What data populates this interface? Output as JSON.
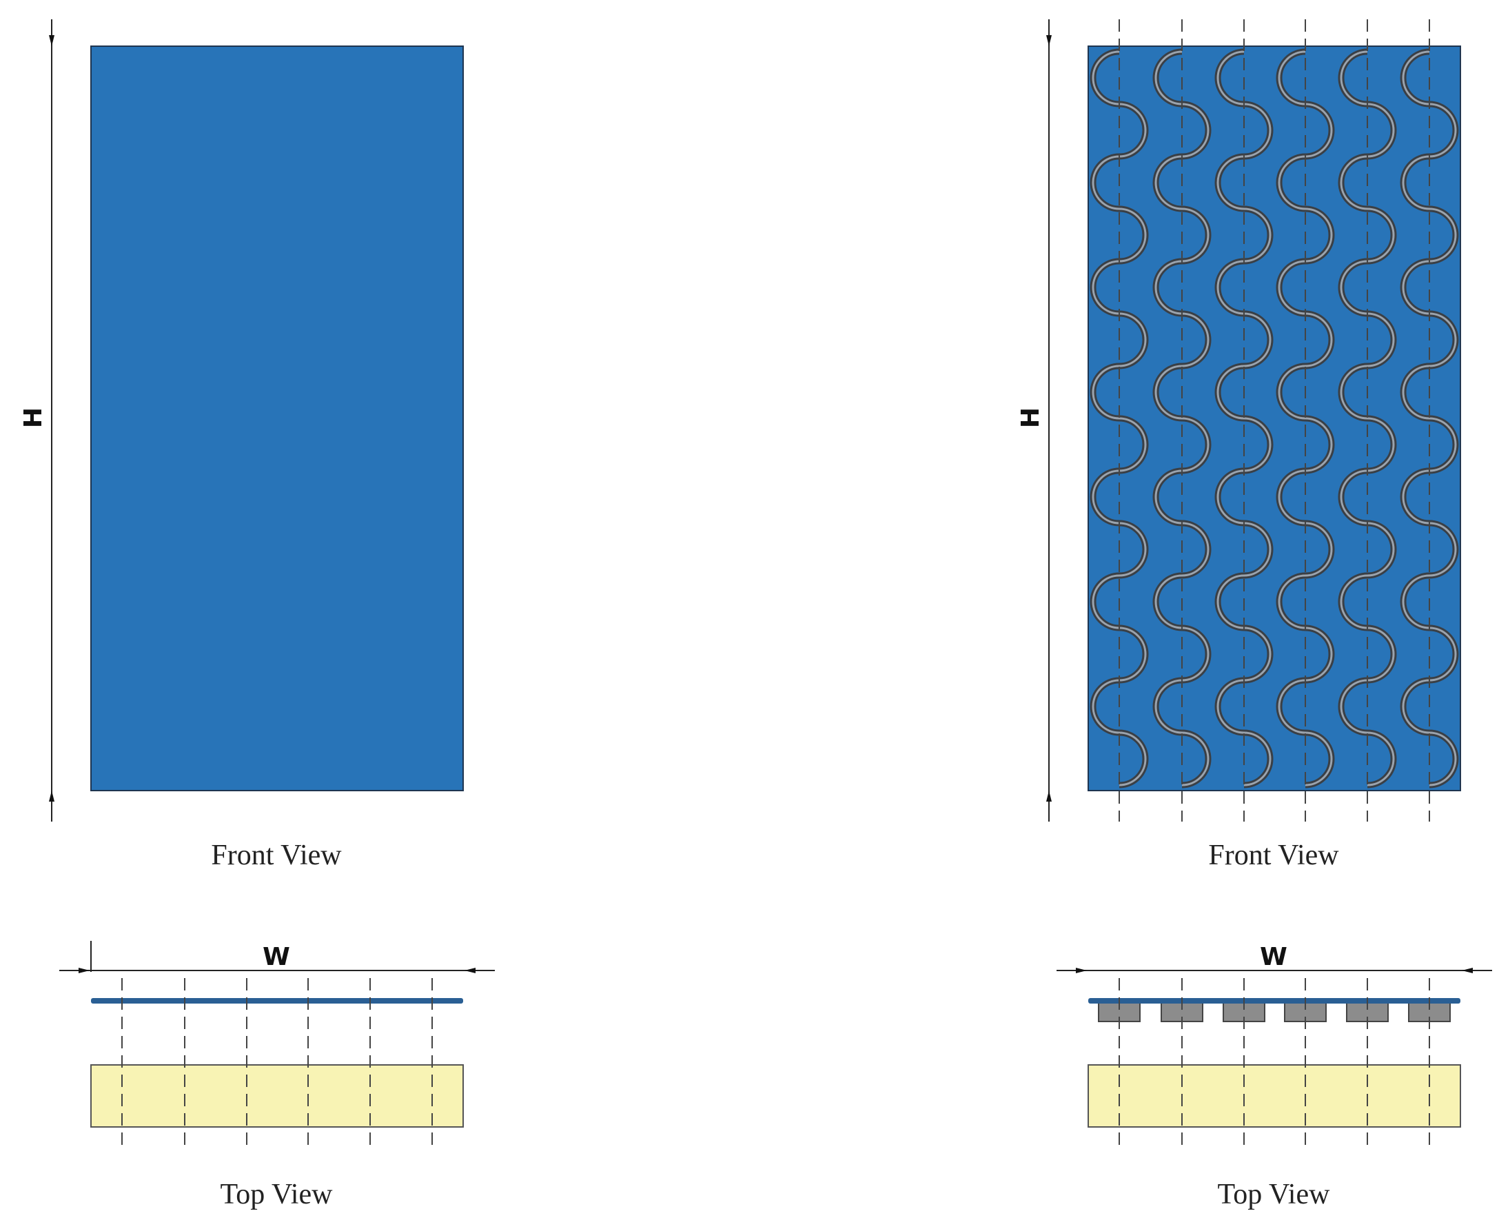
{
  "left": {
    "front_view": {
      "label": "Front View",
      "height_label": "H"
    },
    "top_view": {
      "label": "Top View",
      "width_label": "W"
    }
  },
  "right": {
    "front_view": {
      "label": "Front View",
      "height_label": "H"
    },
    "top_view": {
      "label": "Top View",
      "width_label": "W"
    }
  }
}
